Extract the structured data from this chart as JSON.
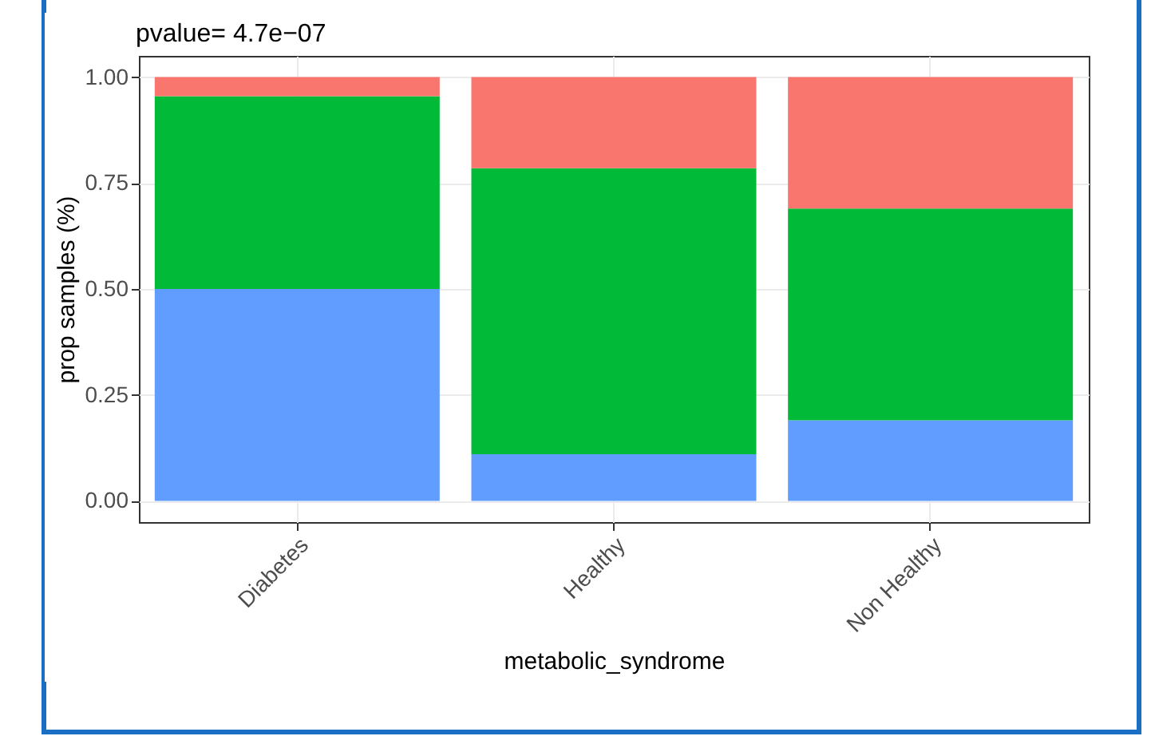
{
  "chart_data": {
    "type": "bar",
    "title": "pvalue= 4.7e−07",
    "xlabel": "metabolic_syndrome",
    "ylabel": "prop samples (%)",
    "categories": [
      "Diabetes",
      "Healthy",
      "Non Healthy"
    ],
    "stacked": true,
    "series": [
      {
        "color": "#619cff",
        "values": [
          0.5,
          0.11,
          0.19
        ]
      },
      {
        "color": "#00ba38",
        "values": [
          0.455,
          0.675,
          0.5
        ]
      },
      {
        "color": "#f8766d",
        "values": [
          0.045,
          0.215,
          0.31
        ]
      }
    ],
    "ylim": [
      -0.05,
      1.05
    ],
    "yticks": [
      {
        "value": 0,
        "label": "0.00"
      },
      {
        "value": 0.25,
        "label": "0.25"
      },
      {
        "value": 0.5,
        "label": "0.50"
      },
      {
        "value": 0.75,
        "label": "0.75"
      },
      {
        "value": 1,
        "label": "1.00"
      }
    ],
    "grid": true,
    "legend": false
  }
}
